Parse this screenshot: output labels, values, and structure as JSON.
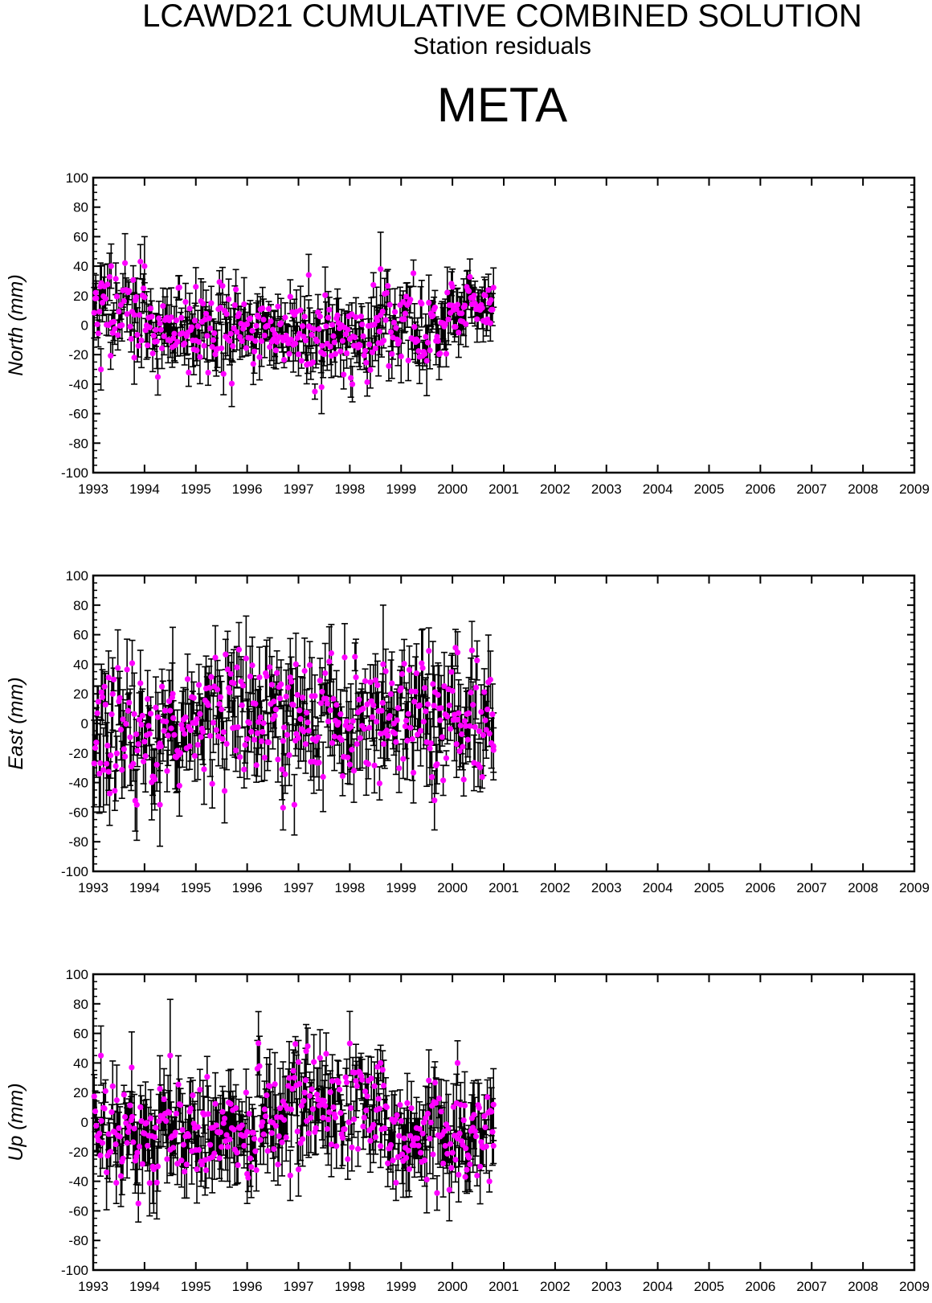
{
  "header": {
    "title": "LCAWD21 CUMULATIVE COMBINED SOLUTION",
    "subtitle": "Station residuals",
    "station": "META"
  },
  "colors": {
    "point": "#ff00ff",
    "errorbar": "#000000",
    "axis": "#000000"
  },
  "chart_data": [
    {
      "type": "scatter",
      "title": "",
      "xlabel": "",
      "ylabel": "North (mm)",
      "xlim": [
        1993,
        2009
      ],
      "ylim": [
        -100,
        100
      ],
      "x_ticks": [
        "1993",
        "1994",
        "1995",
        "1996",
        "1997",
        "1998",
        "1999",
        "2000",
        "2001",
        "2002",
        "2003",
        "2004",
        "2005",
        "2006",
        "2007",
        "2008",
        "2009"
      ],
      "y_ticks": [
        "100",
        "80",
        "60",
        "40",
        "20",
        "0",
        "-20",
        "-40",
        "-60",
        "-80",
        "-100"
      ],
      "error_bars": true,
      "data_span": [
        1993.0,
        2000.8
      ],
      "sample_points": [
        {
          "x": 1993.05,
          "y": 22,
          "err": 12
        },
        {
          "x": 1993.15,
          "y": -30,
          "err": 14
        },
        {
          "x": 1993.35,
          "y": 40,
          "err": 15
        },
        {
          "x": 1993.8,
          "y": -22,
          "err": 18
        },
        {
          "x": 1994.0,
          "y": 40,
          "err": 20
        },
        {
          "x": 1995.0,
          "y": 26,
          "err": 13
        },
        {
          "x": 1997.2,
          "y": 34,
          "err": 14
        },
        {
          "x": 1997.45,
          "y": -42,
          "err": 18
        },
        {
          "x": 1998.05,
          "y": -40,
          "err": 12
        },
        {
          "x": 1998.6,
          "y": 38,
          "err": 25
        },
        {
          "x": 2000.0,
          "y": 26,
          "err": 12
        },
        {
          "x": 2000.75,
          "y": 17,
          "err": 9
        }
      ]
    },
    {
      "type": "scatter",
      "title": "",
      "xlabel": "",
      "ylabel": "East (mm)",
      "xlim": [
        1993,
        2009
      ],
      "ylim": [
        -100,
        100
      ],
      "x_ticks": [
        "1993",
        "1994",
        "1995",
        "1996",
        "1997",
        "1998",
        "1999",
        "2000",
        "2001",
        "2002",
        "2003",
        "2004",
        "2005",
        "2006",
        "2007",
        "2008",
        "2009"
      ],
      "y_ticks": [
        "100",
        "80",
        "60",
        "40",
        "20",
        "0",
        "-20",
        "-40",
        "-60",
        "-80",
        "-100"
      ],
      "error_bars": true,
      "data_span": [
        1993.0,
        2000.8
      ],
      "sample_points": [
        {
          "x": 1993.3,
          "y": 31,
          "err": 18
        },
        {
          "x": 1993.85,
          "y": -55,
          "err": 24
        },
        {
          "x": 1994.3,
          "y": -55,
          "err": 28
        },
        {
          "x": 1994.55,
          "y": 20,
          "err": 45
        },
        {
          "x": 1995.8,
          "y": 38,
          "err": 14
        },
        {
          "x": 1996.7,
          "y": -57,
          "err": 15
        },
        {
          "x": 1996.95,
          "y": 40,
          "err": 21
        },
        {
          "x": 1998.65,
          "y": 40,
          "err": 40
        },
        {
          "x": 1999.65,
          "y": -52,
          "err": 20
        },
        {
          "x": 2000.1,
          "y": 48,
          "err": 14
        },
        {
          "x": 2000.8,
          "y": -18,
          "err": 15
        }
      ]
    },
    {
      "type": "scatter",
      "title": "",
      "xlabel": "",
      "ylabel": "Up (mm)",
      "xlim": [
        1993,
        2009
      ],
      "ylim": [
        -100,
        100
      ],
      "x_ticks": [
        "1993",
        "1994",
        "1995",
        "1996",
        "1997",
        "1998",
        "1999",
        "2000",
        "2001",
        "2002",
        "2003",
        "2004",
        "2005",
        "2006",
        "2007",
        "2008",
        "2009"
      ],
      "y_ticks": [
        "100",
        "80",
        "60",
        "40",
        "20",
        "0",
        "-20",
        "-40",
        "-60",
        "-80",
        "-100"
      ],
      "error_bars": true,
      "data_span": [
        1993.0,
        2000.8
      ],
      "sample_points": [
        {
          "x": 1993.15,
          "y": 45,
          "err": 20
        },
        {
          "x": 1993.45,
          "y": -41,
          "err": 14
        },
        {
          "x": 1993.75,
          "y": 37,
          "err": 24
        },
        {
          "x": 1994.5,
          "y": 45,
          "err": 38
        },
        {
          "x": 1996.0,
          "y": -35,
          "err": 20
        },
        {
          "x": 1997.15,
          "y": 48,
          "err": 18
        },
        {
          "x": 1997.0,
          "y": -32,
          "err": 18
        },
        {
          "x": 1998.6,
          "y": 40,
          "err": 12
        },
        {
          "x": 2000.1,
          "y": 40,
          "err": 15
        },
        {
          "x": 2000.25,
          "y": -37,
          "err": 10
        },
        {
          "x": 2000.8,
          "y": -16,
          "err": 12
        }
      ]
    }
  ]
}
